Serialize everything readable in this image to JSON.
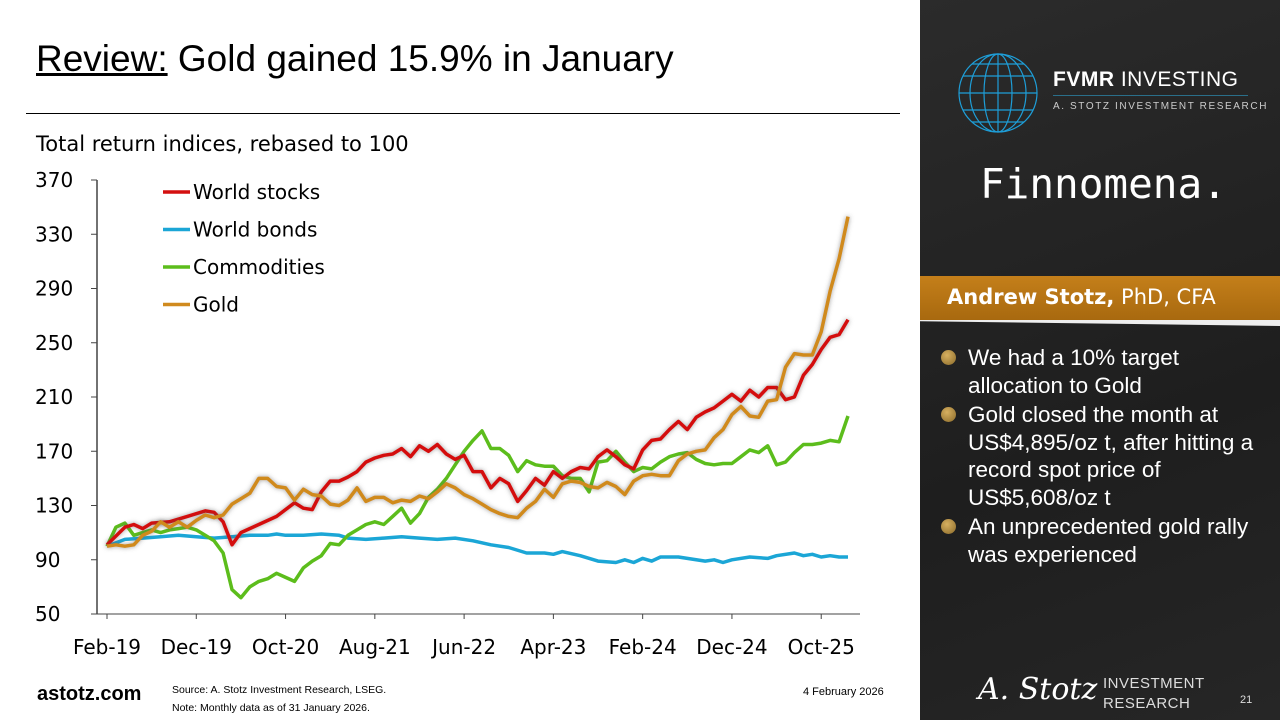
{
  "title": {
    "underlined": "Review:",
    "rest": " Gold gained 15.9% in January"
  },
  "chart_data": {
    "type": "line",
    "title": "Total return indices, rebased to 100",
    "xlabel": "",
    "ylabel": "",
    "ylim": [
      50,
      370
    ],
    "yticks": [
      370,
      330,
      290,
      250,
      210,
      170,
      130,
      90,
      50
    ],
    "x_unit": "months since Feb-19",
    "xlim": [
      0,
      83
    ],
    "xticks": [
      {
        "x": 0,
        "label": "Feb-19"
      },
      {
        "x": 10,
        "label": "Dec-19"
      },
      {
        "x": 20,
        "label": "Oct-20"
      },
      {
        "x": 30,
        "label": "Aug-21"
      },
      {
        "x": 40,
        "label": "Jun-22"
      },
      {
        "x": 50,
        "label": "Apr-23"
      },
      {
        "x": 60,
        "label": "Feb-24"
      },
      {
        "x": 70,
        "label": "Dec-24"
      },
      {
        "x": 80,
        "label": "Oct-25"
      }
    ],
    "legend": "top-left",
    "series": [
      {
        "name": "World stocks",
        "color": "#d40f0f",
        "points": [
          [
            0,
            101
          ],
          [
            2,
            114
          ],
          [
            3,
            116
          ],
          [
            4,
            113
          ],
          [
            5,
            117
          ],
          [
            7,
            118
          ],
          [
            9,
            122
          ],
          [
            11,
            126
          ],
          [
            12,
            125
          ],
          [
            13,
            118
          ],
          [
            14,
            101
          ],
          [
            15,
            110
          ],
          [
            17,
            116
          ],
          [
            19,
            122
          ],
          [
            21,
            132
          ],
          [
            22,
            128
          ],
          [
            23,
            127
          ],
          [
            24,
            140
          ],
          [
            25,
            148
          ],
          [
            26,
            148
          ],
          [
            27,
            151
          ],
          [
            28,
            155
          ],
          [
            29,
            162
          ],
          [
            30,
            165
          ],
          [
            31,
            167
          ],
          [
            32,
            168
          ],
          [
            33,
            172
          ],
          [
            34,
            166
          ],
          [
            35,
            174
          ],
          [
            36,
            170
          ],
          [
            37,
            175
          ],
          [
            38,
            168
          ],
          [
            39,
            164
          ],
          [
            40,
            167
          ],
          [
            41,
            155
          ],
          [
            42,
            155
          ],
          [
            43,
            143
          ],
          [
            44,
            150
          ],
          [
            45,
            146
          ],
          [
            46,
            133
          ],
          [
            47,
            141
          ],
          [
            48,
            150
          ],
          [
            49,
            145
          ],
          [
            50,
            155
          ],
          [
            51,
            150
          ],
          [
            52,
            155
          ],
          [
            53,
            158
          ],
          [
            54,
            157
          ],
          [
            55,
            166
          ],
          [
            56,
            171
          ],
          [
            57,
            166
          ],
          [
            58,
            160
          ],
          [
            59,
            157
          ],
          [
            60,
            171
          ],
          [
            61,
            178
          ],
          [
            62,
            179
          ],
          [
            63,
            186
          ],
          [
            64,
            192
          ],
          [
            65,
            186
          ],
          [
            66,
            195
          ],
          [
            67,
            199
          ],
          [
            68,
            202
          ],
          [
            69,
            207
          ],
          [
            70,
            212
          ],
          [
            71,
            207
          ],
          [
            72,
            215
          ],
          [
            73,
            210
          ],
          [
            74,
            217
          ],
          [
            75,
            217
          ],
          [
            76,
            208
          ],
          [
            77,
            210
          ],
          [
            78,
            226
          ],
          [
            79,
            234
          ],
          [
            80,
            245
          ],
          [
            81,
            254
          ],
          [
            82,
            256
          ],
          [
            83,
            267
          ]
        ]
      },
      {
        "name": "World bonds",
        "color": "#1ba6d6",
        "points": [
          [
            0,
            100
          ],
          [
            2,
            105
          ],
          [
            4,
            106
          ],
          [
            6,
            107
          ],
          [
            8,
            108
          ],
          [
            10,
            107
          ],
          [
            12,
            106
          ],
          [
            14,
            107
          ],
          [
            16,
            108
          ],
          [
            18,
            108
          ],
          [
            19,
            109
          ],
          [
            20,
            108
          ],
          [
            22,
            108
          ],
          [
            24,
            109
          ],
          [
            26,
            108
          ],
          [
            27,
            106
          ],
          [
            29,
            105
          ],
          [
            31,
            106
          ],
          [
            33,
            107
          ],
          [
            35,
            106
          ],
          [
            37,
            105
          ],
          [
            39,
            106
          ],
          [
            41,
            104
          ],
          [
            43,
            101
          ],
          [
            45,
            99
          ],
          [
            47,
            95
          ],
          [
            49,
            95
          ],
          [
            50,
            94
          ],
          [
            51,
            96
          ],
          [
            53,
            93
          ],
          [
            55,
            89
          ],
          [
            57,
            88
          ],
          [
            58,
            90
          ],
          [
            59,
            88
          ],
          [
            60,
            91
          ],
          [
            61,
            89
          ],
          [
            62,
            92
          ],
          [
            64,
            92
          ],
          [
            65,
            91
          ],
          [
            67,
            89
          ],
          [
            68,
            90
          ],
          [
            69,
            88
          ],
          [
            70,
            90
          ],
          [
            72,
            92
          ],
          [
            74,
            91
          ],
          [
            75,
            93
          ],
          [
            77,
            95
          ],
          [
            78,
            93
          ],
          [
            79,
            94
          ],
          [
            80,
            92
          ],
          [
            81,
            93
          ],
          [
            82,
            92
          ],
          [
            83,
            92
          ]
        ]
      },
      {
        "name": "Commodities",
        "color": "#5cbd1c",
        "points": [
          [
            0,
            100
          ],
          [
            1,
            114
          ],
          [
            2,
            117
          ],
          [
            3,
            108
          ],
          [
            4,
            110
          ],
          [
            5,
            112
          ],
          [
            6,
            110
          ],
          [
            7,
            112
          ],
          [
            8,
            113
          ],
          [
            9,
            114
          ],
          [
            10,
            112
          ],
          [
            11,
            108
          ],
          [
            12,
            104
          ],
          [
            13,
            95
          ],
          [
            14,
            68
          ],
          [
            15,
            62
          ],
          [
            16,
            70
          ],
          [
            17,
            74
          ],
          [
            18,
            76
          ],
          [
            19,
            80
          ],
          [
            20,
            77
          ],
          [
            21,
            74
          ],
          [
            22,
            84
          ],
          [
            23,
            89
          ],
          [
            24,
            93
          ],
          [
            25,
            102
          ],
          [
            26,
            101
          ],
          [
            27,
            108
          ],
          [
            28,
            112
          ],
          [
            29,
            116
          ],
          [
            30,
            118
          ],
          [
            31,
            116
          ],
          [
            32,
            122
          ],
          [
            33,
            128
          ],
          [
            34,
            117
          ],
          [
            35,
            124
          ],
          [
            36,
            136
          ],
          [
            37,
            142
          ],
          [
            38,
            150
          ],
          [
            39,
            160
          ],
          [
            40,
            170
          ],
          [
            41,
            178
          ],
          [
            42,
            185
          ],
          [
            43,
            172
          ],
          [
            44,
            172
          ],
          [
            45,
            167
          ],
          [
            46,
            155
          ],
          [
            47,
            163
          ],
          [
            48,
            160
          ],
          [
            49,
            159
          ],
          [
            50,
            159
          ],
          [
            51,
            152
          ],
          [
            52,
            150
          ],
          [
            53,
            150
          ],
          [
            54,
            140
          ],
          [
            55,
            162
          ],
          [
            56,
            163
          ],
          [
            57,
            170
          ],
          [
            58,
            162
          ],
          [
            59,
            155
          ],
          [
            60,
            158
          ],
          [
            61,
            157
          ],
          [
            62,
            162
          ],
          [
            63,
            166
          ],
          [
            64,
            168
          ],
          [
            65,
            169
          ],
          [
            66,
            164
          ],
          [
            67,
            161
          ],
          [
            68,
            160
          ],
          [
            69,
            161
          ],
          [
            70,
            161
          ],
          [
            71,
            166
          ],
          [
            72,
            171
          ],
          [
            73,
            169
          ],
          [
            74,
            174
          ],
          [
            75,
            160
          ],
          [
            76,
            162
          ],
          [
            77,
            169
          ],
          [
            78,
            175
          ],
          [
            79,
            175
          ],
          [
            80,
            176
          ],
          [
            81,
            178
          ],
          [
            82,
            177
          ],
          [
            83,
            196
          ]
        ]
      },
      {
        "name": "Gold",
        "color": "#d08a1e",
        "points": [
          [
            0,
            100
          ],
          [
            1,
            101
          ],
          [
            2,
            100
          ],
          [
            3,
            101
          ],
          [
            4,
            108
          ],
          [
            5,
            111
          ],
          [
            6,
            118
          ],
          [
            7,
            114
          ],
          [
            8,
            118
          ],
          [
            9,
            114
          ],
          [
            10,
            119
          ],
          [
            11,
            123
          ],
          [
            12,
            121
          ],
          [
            13,
            123
          ],
          [
            14,
            131
          ],
          [
            15,
            135
          ],
          [
            16,
            139
          ],
          [
            17,
            150
          ],
          [
            18,
            150
          ],
          [
            19,
            144
          ],
          [
            20,
            143
          ],
          [
            21,
            134
          ],
          [
            22,
            142
          ],
          [
            23,
            138
          ],
          [
            24,
            137
          ],
          [
            25,
            131
          ],
          [
            26,
            130
          ],
          [
            27,
            134
          ],
          [
            28,
            143
          ],
          [
            29,
            133
          ],
          [
            30,
            136
          ],
          [
            31,
            136
          ],
          [
            32,
            132
          ],
          [
            33,
            134
          ],
          [
            34,
            133
          ],
          [
            35,
            137
          ],
          [
            36,
            135
          ],
          [
            37,
            140
          ],
          [
            38,
            146
          ],
          [
            39,
            143
          ],
          [
            40,
            138
          ],
          [
            41,
            135
          ],
          [
            42,
            131
          ],
          [
            43,
            127
          ],
          [
            44,
            124
          ],
          [
            45,
            122
          ],
          [
            46,
            121
          ],
          [
            47,
            128
          ],
          [
            48,
            133
          ],
          [
            49,
            142
          ],
          [
            50,
            136
          ],
          [
            51,
            146
          ],
          [
            52,
            148
          ],
          [
            53,
            147
          ],
          [
            54,
            144
          ],
          [
            55,
            143
          ],
          [
            56,
            147
          ],
          [
            57,
            144
          ],
          [
            58,
            138
          ],
          [
            59,
            148
          ],
          [
            60,
            152
          ],
          [
            61,
            153
          ],
          [
            62,
            152
          ],
          [
            63,
            152
          ],
          [
            64,
            163
          ],
          [
            65,
            168
          ],
          [
            66,
            170
          ],
          [
            67,
            171
          ],
          [
            68,
            180
          ],
          [
            69,
            186
          ],
          [
            70,
            197
          ],
          [
            71,
            203
          ],
          [
            72,
            196
          ],
          [
            73,
            195
          ],
          [
            74,
            207
          ],
          [
            75,
            208
          ],
          [
            76,
            232
          ],
          [
            77,
            242
          ],
          [
            78,
            241
          ],
          [
            79,
            241
          ],
          [
            80,
            258
          ],
          [
            81,
            288
          ],
          [
            82,
            312
          ],
          [
            83,
            343
          ]
        ]
      }
    ]
  },
  "sidebar": {
    "brand": "FVMR",
    "brand2": " INVESTING",
    "brand_sub": "A. STOTZ INVESTMENT RESEARCH",
    "partner": "Finnomena.",
    "author_name": "Andrew Stotz,",
    "author_creds": " PhD, CFA",
    "bullets": [
      "We had a 10% target allocation to Gold",
      "Gold closed the month at US$4,895/oz t, after hitting a record spot price of US$5,608/oz t",
      "An unprecedented gold rally was experienced"
    ]
  },
  "footer": {
    "url": "astotz.com",
    "source": "Source: A. Stotz Investment Research, LSEG.",
    "note": "Note: Monthly data as of 31 January 2026.",
    "date": "4 February 2026",
    "signature": "A. Stotz",
    "research1": "INVESTMENT",
    "research2": "RESEARCH",
    "page": "21"
  }
}
